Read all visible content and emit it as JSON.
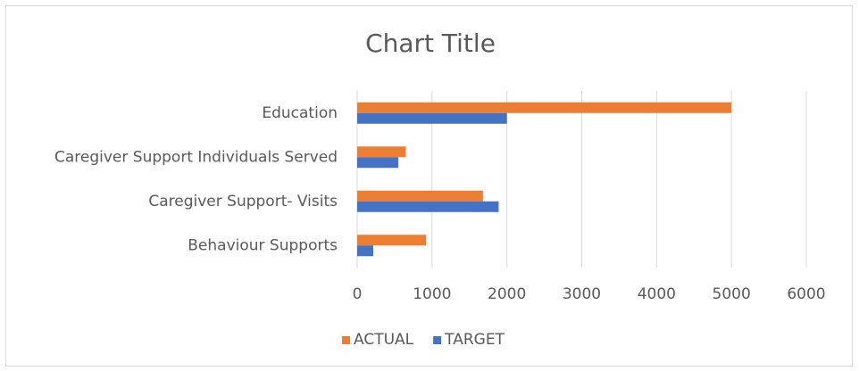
{
  "chart_data": {
    "type": "hbar",
    "title": "Chart Title",
    "categories": [
      "Education",
      "Caregiver Support Individuals Served",
      "Caregiver Support- Visits",
      "Behaviour Supports"
    ],
    "series": [
      {
        "name": "ACTUAL",
        "color": "#ed7d31",
        "values": [
          5000,
          650,
          1680,
          920
        ]
      },
      {
        "name": "TARGET",
        "color": "#4472c4",
        "values": [
          2000,
          550,
          1890,
          215
        ]
      }
    ],
    "xlim": [
      0,
      6000
    ],
    "xticks": [
      0,
      1000,
      2000,
      3000,
      4000,
      5000,
      6000
    ],
    "grid": true,
    "legend": "bottom"
  }
}
